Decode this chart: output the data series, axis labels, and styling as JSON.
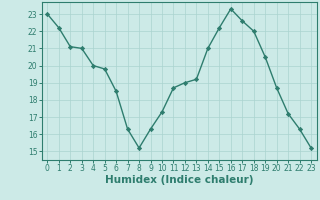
{
  "x": [
    0,
    1,
    2,
    3,
    4,
    5,
    6,
    7,
    8,
    9,
    10,
    11,
    12,
    13,
    14,
    15,
    16,
    17,
    18,
    19,
    20,
    21,
    22,
    23
  ],
  "y": [
    23,
    22.2,
    21.1,
    21.0,
    20.0,
    19.8,
    18.5,
    16.3,
    15.2,
    16.3,
    17.3,
    18.7,
    19.0,
    19.2,
    21.0,
    22.2,
    23.3,
    22.6,
    22.0,
    20.5,
    18.7,
    17.2,
    16.3,
    15.2
  ],
  "line_color": "#2e7d6e",
  "marker": "D",
  "marker_size": 2.2,
  "bg_color": "#cceae7",
  "grid_color": "#aad4d0",
  "xlabel": "Humidex (Indice chaleur)",
  "xlim": [
    -0.5,
    23.5
  ],
  "ylim": [
    14.5,
    23.7
  ],
  "yticks": [
    15,
    16,
    17,
    18,
    19,
    20,
    21,
    22,
    23
  ],
  "xticks": [
    0,
    1,
    2,
    3,
    4,
    5,
    6,
    7,
    8,
    9,
    10,
    11,
    12,
    13,
    14,
    15,
    16,
    17,
    18,
    19,
    20,
    21,
    22,
    23
  ],
  "tick_fontsize": 5.5,
  "xlabel_fontsize": 7.5,
  "xlabel_fontweight": "bold",
  "tick_color": "#2e7d6e",
  "spine_color": "#2e7d6e"
}
